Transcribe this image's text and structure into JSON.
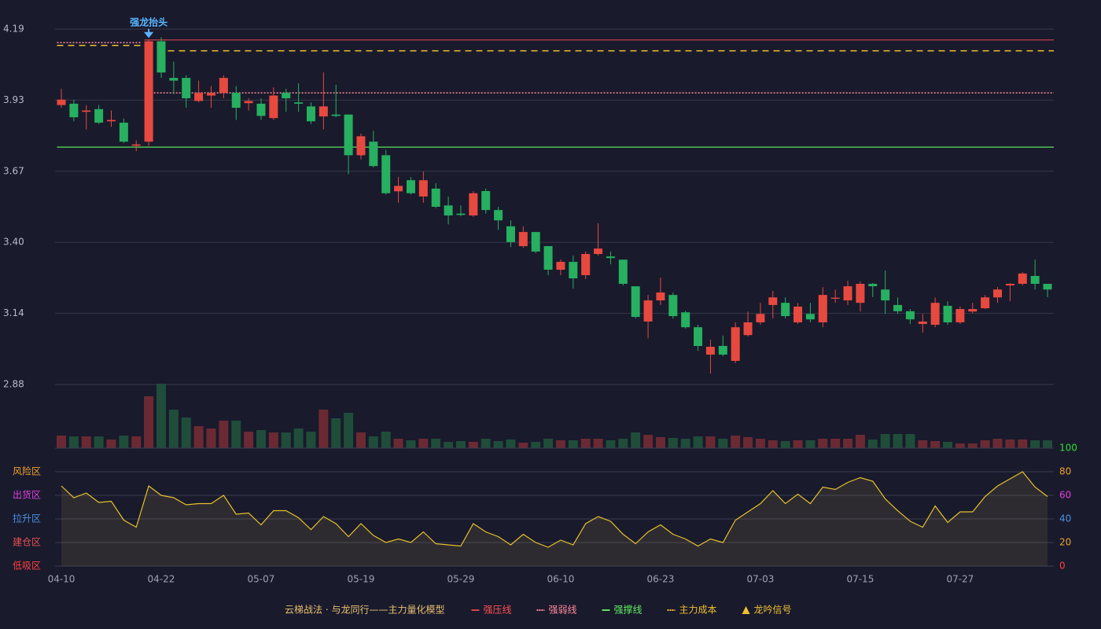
{
  "chart_data": [
    {
      "type": "candlestick",
      "categories": [
        "04-10",
        null,
        null,
        null,
        null,
        null,
        null,
        null,
        "04-22",
        null,
        null,
        null,
        null,
        null,
        null,
        null,
        "05-07",
        null,
        null,
        null,
        null,
        null,
        null,
        null,
        "05-19",
        null,
        null,
        null,
        null,
        null,
        null,
        null,
        "05-29",
        null,
        null,
        null,
        null,
        null,
        null,
        null,
        "06-10",
        null,
        null,
        null,
        null,
        null,
        null,
        null,
        "06-23",
        null,
        null,
        null,
        null,
        null,
        null,
        null,
        "07-03",
        null,
        null,
        null,
        null,
        null,
        null,
        null,
        "07-15",
        null,
        null,
        null,
        null,
        null,
        null,
        null,
        "07-27",
        null,
        null,
        null,
        null,
        null,
        null,
        null
      ],
      "open": [
        3.91,
        3.915,
        3.885,
        3.895,
        3.85,
        3.845,
        3.76,
        3.775,
        4.145,
        4.01,
        4.01,
        3.925,
        3.945,
        3.955,
        3.955,
        3.917,
        3.915,
        3.862,
        3.955,
        3.92,
        3.905,
        3.868,
        3.875,
        3.875,
        3.725,
        3.775,
        3.725,
        3.592,
        3.633,
        3.573,
        3.602,
        3.54,
        3.51,
        3.503,
        3.593,
        3.523,
        3.463,
        3.39,
        3.442,
        3.39,
        3.303,
        3.332,
        3.283,
        3.361,
        3.352,
        3.34,
        3.242,
        3.112,
        3.19,
        3.21,
        3.146,
        3.091,
        2.99,
        3.022,
        2.967,
        3.062,
        3.109,
        3.173,
        3.181,
        3.109,
        3.14,
        3.109,
        3.196,
        3.19,
        3.181,
        3.251,
        3.23,
        3.173,
        3.15,
        3.103,
        3.1,
        3.17,
        3.109,
        3.149,
        3.161,
        3.201,
        3.245,
        3.251,
        3.28,
        3.251
      ],
      "close": [
        3.93,
        3.865,
        3.89,
        3.845,
        3.855,
        3.775,
        3.765,
        4.145,
        4.03,
        4.0,
        3.935,
        3.955,
        3.955,
        4.01,
        3.9,
        3.925,
        3.87,
        3.945,
        3.935,
        3.915,
        3.85,
        3.905,
        3.87,
        3.725,
        3.795,
        3.685,
        3.585,
        3.612,
        3.585,
        3.633,
        3.535,
        3.503,
        3.505,
        3.585,
        3.523,
        3.485,
        3.405,
        3.442,
        3.37,
        3.303,
        3.332,
        3.271,
        3.361,
        3.381,
        3.346,
        3.251,
        3.129,
        3.19,
        3.219,
        3.132,
        3.091,
        3.022,
        3.019,
        2.99,
        3.091,
        3.109,
        3.14,
        3.201,
        3.132,
        3.167,
        3.12,
        3.21,
        3.2,
        3.242,
        3.251,
        3.242,
        3.19,
        3.15,
        3.12,
        3.112,
        3.181,
        3.109,
        3.158,
        3.158,
        3.201,
        3.23,
        3.251,
        3.289,
        3.251,
        3.23
      ],
      "high": [
        3.97,
        3.93,
        3.91,
        3.91,
        3.89,
        3.86,
        3.78,
        4.15,
        4.16,
        4.07,
        4.02,
        4.0,
        3.98,
        4.02,
        3.98,
        3.935,
        3.935,
        3.975,
        3.97,
        3.99,
        3.92,
        4.03,
        3.985,
        3.875,
        3.805,
        3.815,
        3.745,
        3.645,
        3.645,
        3.665,
        3.622,
        3.573,
        3.54,
        3.593,
        3.602,
        3.535,
        3.485,
        3.463,
        3.442,
        3.39,
        3.341,
        3.355,
        3.37,
        3.474,
        3.37,
        3.34,
        3.242,
        3.21,
        3.274,
        3.219,
        3.152,
        3.1,
        3.045,
        3.06,
        3.109,
        3.149,
        3.181,
        3.225,
        3.201,
        3.181,
        3.181,
        3.239,
        3.23,
        3.262,
        3.26,
        3.254,
        3.3,
        3.201,
        3.158,
        3.14,
        3.201,
        3.187,
        3.167,
        3.181,
        3.21,
        3.239,
        3.254,
        3.294,
        3.34,
        3.251
      ],
      "low": [
        3.9,
        3.85,
        3.82,
        3.84,
        3.83,
        3.77,
        3.74,
        3.76,
        4.01,
        3.95,
        3.9,
        3.92,
        3.9,
        3.935,
        3.855,
        3.89,
        3.855,
        3.855,
        3.885,
        3.885,
        3.84,
        3.82,
        3.865,
        3.655,
        3.71,
        3.68,
        3.58,
        3.55,
        3.58,
        3.55,
        3.53,
        3.47,
        3.5,
        3.497,
        3.51,
        3.45,
        3.387,
        3.384,
        3.364,
        3.283,
        3.283,
        3.233,
        3.268,
        3.355,
        3.323,
        3.245,
        3.123,
        3.05,
        3.173,
        3.123,
        3.086,
        3.004,
        2.92,
        2.984,
        2.958,
        3.057,
        3.1,
        3.123,
        3.123,
        3.103,
        3.109,
        3.091,
        3.181,
        3.173,
        3.149,
        3.202,
        3.14,
        3.14,
        3.103,
        3.071,
        3.091,
        3.1,
        3.103,
        3.143,
        3.158,
        3.181,
        3.187,
        3.245,
        3.23,
        3.202
      ],
      "up_color": "#e8493f",
      "down_color": "#26b060",
      "ylim": [
        2.88,
        4.19
      ],
      "yticks": [
        {
          "value": 4.19,
          "label": "4.19"
        },
        {
          "value": 3.928,
          "label": "3.93"
        },
        {
          "value": 3.666,
          "label": "3.67"
        },
        {
          "value": 3.404,
          "label": "3.40"
        },
        {
          "value": 3.142,
          "label": "3.14"
        },
        {
          "value": 2.88,
          "label": "2.88"
        }
      ],
      "grid": true,
      "levels": [
        {
          "name": "强压线",
          "color": "#d9434a",
          "text_color": "#ff5050",
          "dash": "none",
          "segments": [
            {
              "start": 7,
              "end": 79,
              "value": 4.15
            }
          ]
        },
        {
          "name": "强弱线",
          "color": "#ff8a9a",
          "text_color": "#ff8a9a",
          "dash": "2,2",
          "segments": [
            {
              "start": 0,
              "end": 6,
              "value": 4.14
            },
            {
              "start": 7,
              "end": 79,
              "value": 3.955
            }
          ]
        },
        {
          "name": "强撑线",
          "color": "#5fe05f",
          "text_color": "#5ff05f",
          "dash": "none",
          "segments": [
            {
              "start": 0,
              "end": 79,
              "value": 3.755
            }
          ]
        },
        {
          "name": "主力成本",
          "color": "#f0c030",
          "text_color": "#f0c030",
          "dash": "8,6",
          "segments": [
            {
              "start": 0,
              "end": 6,
              "value": 4.13
            },
            {
              "start": 8,
              "end": 79,
              "value": 4.11
            }
          ]
        }
      ],
      "signals": [
        {
          "name": "龙吟信号",
          "color": "#f0c030",
          "marker": "triangle"
        }
      ],
      "annotation": {
        "text": "强龙抬头",
        "index": 7,
        "value": 4.15,
        "color": "#5ab4ff"
      },
      "legend_title": "云梯战法 · 与龙同行——主力量化模型"
    },
    {
      "type": "bar",
      "values": [
        16,
        15,
        15,
        15,
        11,
        16,
        15,
        66,
        82,
        49,
        39,
        28,
        25,
        35,
        35,
        21,
        23,
        20,
        20,
        25,
        21,
        49,
        38,
        45,
        20,
        15,
        21,
        12,
        10,
        12,
        12,
        8,
        9,
        8,
        12,
        9,
        11,
        7,
        8,
        12,
        10,
        10,
        12,
        12,
        10,
        12,
        20,
        17,
        14,
        13,
        12,
        15,
        15,
        12,
        16,
        14,
        12,
        10,
        9,
        10,
        10,
        12,
        12,
        12,
        17,
        11,
        18,
        18,
        18,
        10,
        9,
        8,
        6,
        6,
        10,
        12,
        11,
        11,
        10,
        10
      ],
      "up_color": "#6b2a33",
      "down_color": "#1f4d3a"
    },
    {
      "type": "line",
      "values": [
        68,
        58,
        62,
        54,
        55,
        39,
        33,
        68,
        60,
        58,
        52,
        53,
        53,
        60,
        44,
        45,
        35,
        47,
        47,
        41,
        31,
        42,
        36,
        25,
        36,
        26,
        20,
        23,
        20,
        29,
        19,
        18,
        17,
        36,
        29,
        25,
        18,
        27,
        20,
        16,
        22,
        18,
        36,
        42,
        38,
        27,
        19,
        29,
        35,
        27,
        23,
        17,
        23,
        20,
        39,
        46,
        53,
        64,
        53,
        61,
        53,
        67,
        65,
        71,
        75,
        72,
        57,
        47,
        38,
        33,
        51,
        37,
        46,
        46,
        59,
        68,
        74,
        80,
        67,
        59
      ],
      "color": "#e6c229",
      "ylim": [
        0,
        100
      ],
      "yticks": [
        0,
        20,
        40,
        60,
        80,
        100
      ],
      "ytick_colors": [
        "#ff4040",
        "#f0a030",
        "#4a90e2",
        "#e040e0",
        "#f0a030",
        "#33dd33"
      ],
      "zones": [
        {
          "value": 80,
          "label": "风险区",
          "color": "#f0a030"
        },
        {
          "value": 60,
          "label": "出货区",
          "color": "#e040e0"
        },
        {
          "value": 40,
          "label": "拉升区",
          "color": "#4a90e2"
        },
        {
          "value": 20,
          "label": "建仓区",
          "color": "#e85050"
        },
        {
          "value": 0,
          "label": "低吸区",
          "color": "#ff4040"
        }
      ],
      "grid": true
    }
  ]
}
